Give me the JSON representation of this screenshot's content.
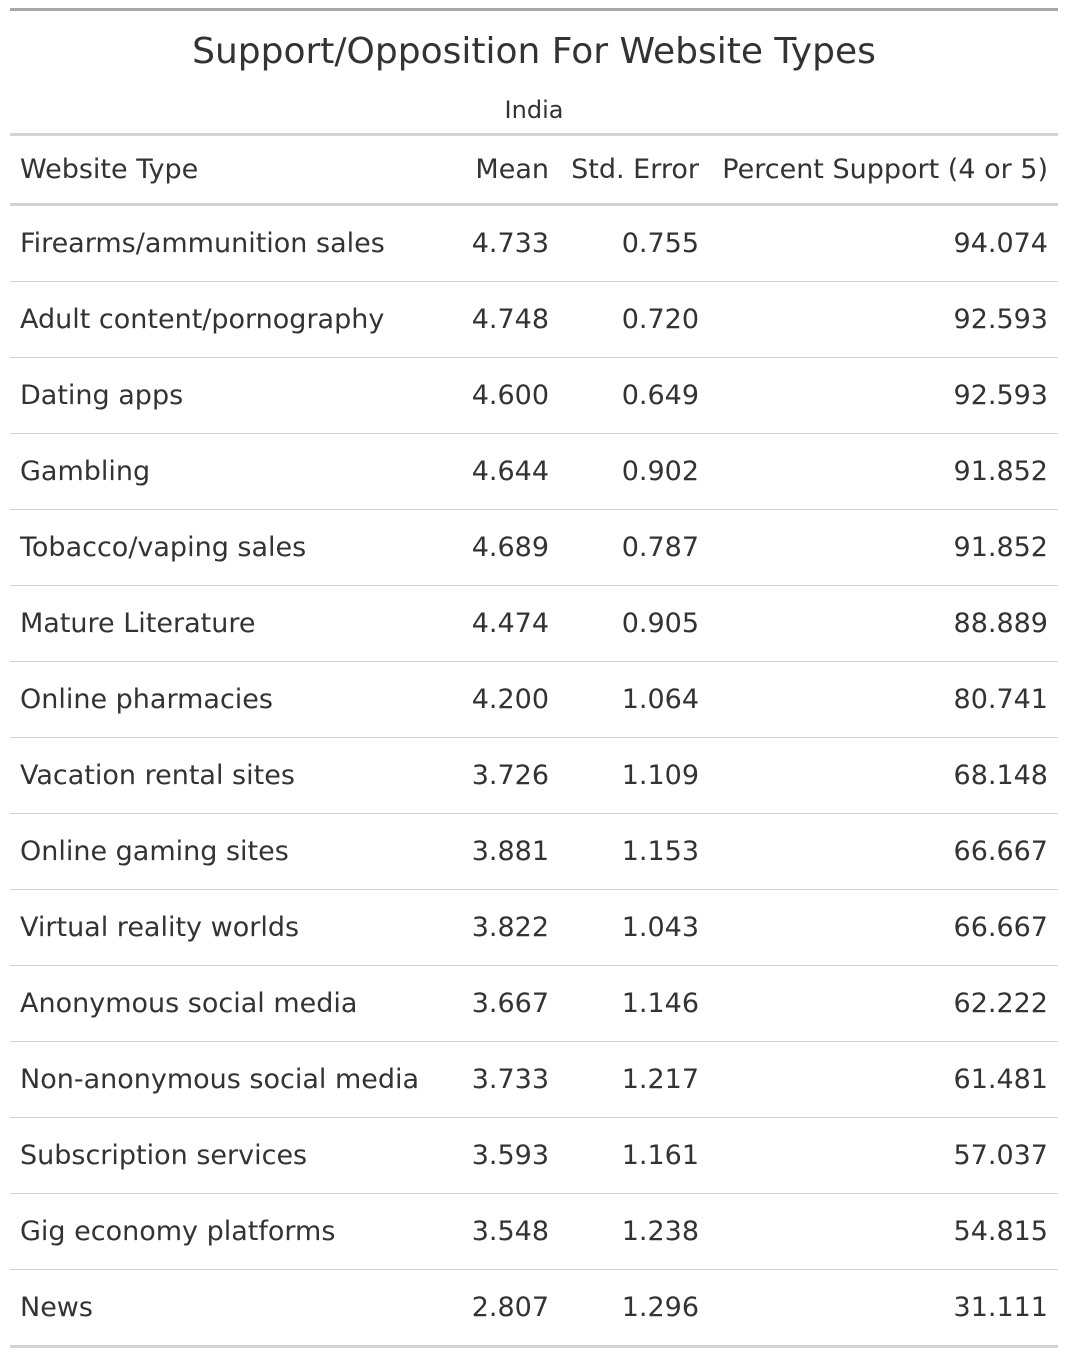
{
  "chart_data": {
    "type": "table",
    "title": "Support/Opposition For Website Types",
    "subtitle": "India",
    "columns": [
      "Website Type",
      "Mean",
      "Std. Error",
      "Percent Support (4 or 5)"
    ],
    "rows": [
      [
        "Firearms/ammunition sales",
        "4.733",
        "0.755",
        "94.074"
      ],
      [
        "Adult content/pornography",
        "4.748",
        "0.720",
        "92.593"
      ],
      [
        "Dating apps",
        "4.600",
        "0.649",
        "92.593"
      ],
      [
        "Gambling",
        "4.644",
        "0.902",
        "91.852"
      ],
      [
        "Tobacco/vaping sales",
        "4.689",
        "0.787",
        "91.852"
      ],
      [
        "Mature Literature",
        "4.474",
        "0.905",
        "88.889"
      ],
      [
        "Online pharmacies",
        "4.200",
        "1.064",
        "80.741"
      ],
      [
        "Vacation rental sites",
        "3.726",
        "1.109",
        "68.148"
      ],
      [
        "Online gaming sites",
        "3.881",
        "1.153",
        "66.667"
      ],
      [
        "Virtual reality worlds",
        "3.822",
        "1.043",
        "66.667"
      ],
      [
        "Anonymous social media",
        "3.667",
        "1.146",
        "62.222"
      ],
      [
        "Non-anonymous social media",
        "3.733",
        "1.217",
        "61.481"
      ],
      [
        "Subscription services",
        "3.593",
        "1.161",
        "57.037"
      ],
      [
        "Gig economy platforms",
        "3.548",
        "1.238",
        "54.815"
      ],
      [
        "News",
        "2.807",
        "1.296",
        "31.111"
      ]
    ]
  }
}
